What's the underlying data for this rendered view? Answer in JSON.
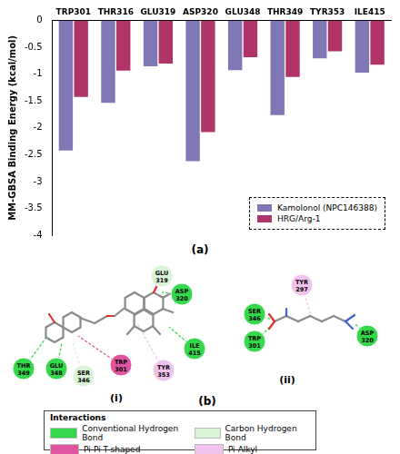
{
  "chart_data": {
    "type": "bar",
    "ylabel": "MM-GBSA Binding Energy (kcal/mol)",
    "categories": [
      "TRP301",
      "THR316",
      "GLU319",
      "ASP320",
      "GLU348",
      "THR349",
      "TYR353",
      "ILE415"
    ],
    "series": [
      {
        "name": "Kamolonol (NPC146388)",
        "color": "#7f78b5",
        "values": [
          -2.42,
          -1.53,
          -0.85,
          -2.62,
          -0.92,
          -1.76,
          -0.7,
          -0.97
        ]
      },
      {
        "name": "HRG/Arg-1",
        "color": "#b03468",
        "values": [
          -1.42,
          -0.93,
          -0.8,
          -2.08,
          -0.68,
          -1.05,
          -0.57,
          -0.82
        ]
      }
    ],
    "ylim": [
      -4,
      0
    ],
    "yticks": [
      0,
      -0.5,
      -1,
      -1.5,
      -2,
      -2.5,
      -3,
      -3.5,
      -4
    ],
    "grid": false,
    "legend": "lower right",
    "panel_label": "(a)"
  },
  "diagram": {
    "panel_label": "(b)",
    "panels": [
      {
        "label": "(i)",
        "residues": [
          {
            "label": "GLU 319",
            "interaction": "Carbon Hydrogen Bond"
          },
          {
            "label": "ASP 320",
            "interaction": "Conventional Hydrogen Bond"
          },
          {
            "label": "ILE 415",
            "interaction": "Conventional Hydrogen Bond"
          },
          {
            "label": "TRP 301",
            "interaction": "Pi-Pi T-shaped"
          },
          {
            "label": "TYR 353",
            "interaction": "Pi-Alkyl"
          },
          {
            "label": "SER 346",
            "interaction": "Carbon Hydrogen Bond"
          },
          {
            "label": "GLU 348",
            "interaction": "Conventional Hydrogen Bond"
          },
          {
            "label": "THR 349",
            "interaction": "Conventional Hydrogen Bond"
          }
        ]
      },
      {
        "label": "(ii)",
        "residues": [
          {
            "label": "TYR 297",
            "interaction": "Pi-Alkyl"
          },
          {
            "label": "SER 346",
            "interaction": "Conventional Hydrogen Bond"
          },
          {
            "label": "TRP 301",
            "interaction": "Conventional Hydrogen Bond"
          },
          {
            "label": "ASP 320",
            "interaction": "Conventional Hydrogen Bond"
          }
        ]
      }
    ],
    "legend": {
      "title": "Interactions",
      "items": [
        {
          "label": "Conventional Hydrogen Bond",
          "color": "#33d94a"
        },
        {
          "label": "Carbon Hydrogen Bond",
          "color": "#d8f3d6"
        },
        {
          "label": "Pi-Pi T-shaped",
          "color": "#e0559f"
        },
        {
          "label": "Pi-Alkyl",
          "color": "#f1c3ec"
        }
      ]
    }
  }
}
